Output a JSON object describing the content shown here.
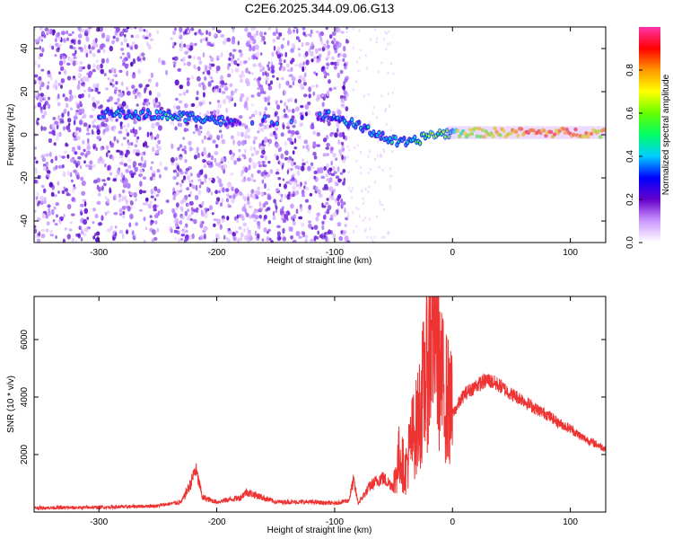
{
  "title": "C2E6.2025.344.09.06.G13",
  "chart_data": [
    {
      "type": "heatmap",
      "title": "C2E6.2025.344.09.06.G13",
      "xlabel": "Height of straight line (km)",
      "ylabel": "Frequency (Hz)",
      "xlim": [
        -355,
        130
      ],
      "ylim": [
        -50,
        50
      ],
      "x_ticks": [
        -300,
        -200,
        -100,
        0,
        100
      ],
      "y_ticks": [
        -40,
        -20,
        0,
        20,
        40
      ],
      "colorbar": {
        "label": "Normalized spectral amplitude",
        "range": [
          0,
          1
        ],
        "ticks": [
          "0.0",
          "0.2",
          "0.4",
          "0.6",
          "0.8"
        ],
        "colors": [
          "#ffffff",
          "#cc99ff",
          "#6600cc",
          "#0000ff",
          "#00ccff",
          "#00ff66",
          "#66ff00",
          "#ffff00",
          "#ff9900",
          "#ff0000",
          "#ff33aa"
        ]
      },
      "noise_band_x": [
        -355,
        -88
      ],
      "gap_x": [
        -248,
        -238
      ],
      "signal_track": [
        {
          "x": -300,
          "y": 10,
          "amp": 0.35
        },
        {
          "x": -245,
          "y": 9,
          "amp": 0.45
        },
        {
          "x": -210,
          "y": 8,
          "amp": 0.45
        },
        {
          "x": -185,
          "y": 5,
          "amp": 0.3
        },
        {
          "x": -105,
          "y": 9,
          "amp": 0.35
        },
        {
          "x": -90,
          "y": 6,
          "amp": 0.4
        },
        {
          "x": -70,
          "y": 2,
          "amp": 0.45
        },
        {
          "x": -50,
          "y": -3,
          "amp": 0.45
        },
        {
          "x": -35,
          "y": -4,
          "amp": 0.5
        },
        {
          "x": -20,
          "y": 0,
          "amp": 0.7
        },
        {
          "x": 0,
          "y": 1,
          "amp": 0.6
        },
        {
          "x": 30,
          "y": 1,
          "amp": 0.7
        },
        {
          "x": 60,
          "y": 1,
          "amp": 0.85
        },
        {
          "x": 100,
          "y": 1,
          "amp": 0.85
        },
        {
          "x": 130,
          "y": 1,
          "amp": 0.75
        }
      ]
    },
    {
      "type": "line",
      "xlabel": "Height of straight line (km)",
      "ylabel": "SNR (10 * v/v)",
      "xlim": [
        -355,
        130
      ],
      "ylim": [
        0,
        7500
      ],
      "x_ticks": [
        -300,
        -200,
        -100,
        0,
        100
      ],
      "y_ticks": [
        2000,
        4000,
        6000
      ],
      "line_color": "#ee3333",
      "series": [
        {
          "x": [
            -355,
            -320,
            -280,
            -250,
            -230,
            -222,
            -218,
            -212,
            -200,
            -180,
            -175,
            -150,
            -120,
            -100,
            -88,
            -84,
            -80,
            -70,
            -60,
            -50,
            -45,
            -40,
            -35,
            -30,
            -25,
            -20,
            -15,
            -10,
            -5,
            0,
            10,
            20,
            30,
            40,
            50,
            60,
            70,
            80,
            90,
            100,
            110,
            120,
            130
          ],
          "values": [
            150,
            150,
            180,
            220,
            350,
            1000,
            1500,
            500,
            350,
            500,
            700,
            350,
            350,
            300,
            400,
            1100,
            300,
            900,
            1200,
            900,
            2000,
            1400,
            2500,
            3000,
            4200,
            5500,
            7200,
            4500,
            4000,
            3400,
            4100,
            4400,
            4600,
            4400,
            4100,
            3900,
            3600,
            3400,
            3100,
            2900,
            2600,
            2400,
            2200
          ]
        }
      ]
    }
  ]
}
